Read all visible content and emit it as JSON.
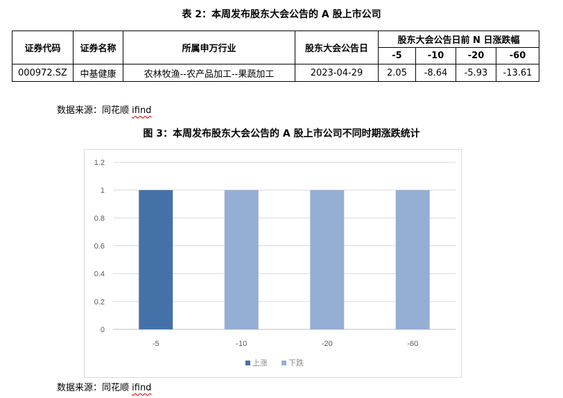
{
  "table": {
    "title": "表 2：本周发布股东大会公告的 A 股上市公司",
    "headers": {
      "code": "证券代码",
      "name": "证券名称",
      "industry": "所属申万行业",
      "date": "股东大会公告日",
      "change_group": "股东大会公告日前 N 日涨跌幅",
      "periods": [
        "-5",
        "-10",
        "-20",
        "-60"
      ]
    },
    "rows": [
      {
        "code": "000972.SZ",
        "name": "中基健康",
        "industry": "农林牧渔--农产品加工--果蔬加工",
        "date": "2023-04-29",
        "changes": [
          "2.05",
          "-8.64",
          "-5.93",
          "-13.61"
        ]
      }
    ]
  },
  "source1": {
    "prefix": "数据来源：同花顺 ",
    "ifind": "ifind"
  },
  "chart": {
    "title": "图 3：本周发布股东大会公告的 A 股上市公司不同时期涨跌统计"
  },
  "chart_data": {
    "type": "bar",
    "title": "图 3：本周发布股东大会公告的 A 股上市公司不同时期涨跌统计",
    "categories": [
      "-5",
      "-10",
      "-20",
      "-60"
    ],
    "series": [
      {
        "name": "上涨",
        "values": [
          1,
          0,
          0,
          0
        ],
        "color": "#4472a8"
      },
      {
        "name": "下跌",
        "values": [
          0,
          1,
          1,
          1
        ],
        "color": "#95aed3"
      }
    ],
    "stacked": true,
    "ylim": [
      0,
      1.2
    ],
    "yticks": [
      "0",
      "0.2",
      "0.4",
      "0.6",
      "0.8",
      "1",
      "1.2"
    ],
    "grid": true,
    "legend": "bottom"
  },
  "source2": {
    "prefix": "数据来源：同花顺 ",
    "ifind": "ifind"
  }
}
